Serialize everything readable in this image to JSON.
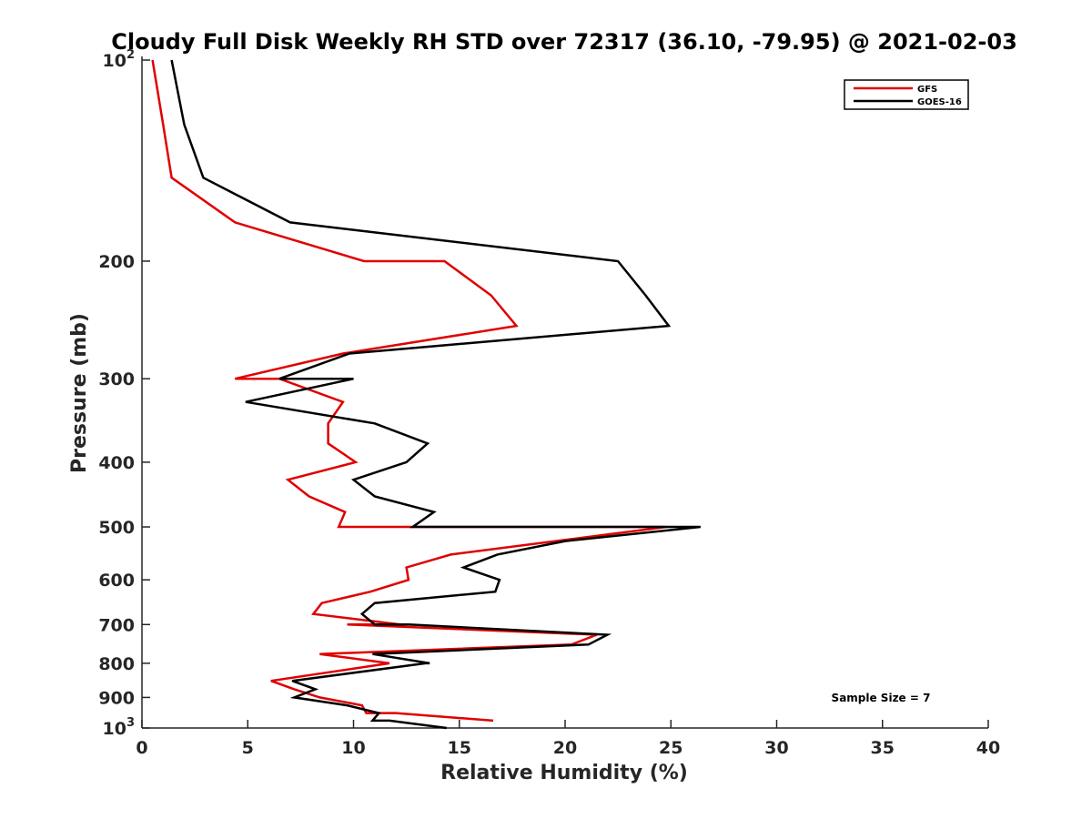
{
  "chart_data": {
    "type": "line",
    "title": "Cloudy Full Disk Weekly RH STD over 72317 (36.10, -79.95) @ 2021-02-03",
    "xlabel": "Relative Humidity (%)",
    "ylabel": "Pressure (mb)",
    "xlim": [
      0,
      40
    ],
    "ylim": [
      100,
      1000
    ],
    "y_scale": "log",
    "y_reversed": true,
    "x_ticks": [
      "0",
      "5",
      "10",
      "15",
      "20",
      "25",
      "30",
      "35",
      "40"
    ],
    "y_ticks": [
      {
        "value": 100,
        "base": "10",
        "exp": "2"
      },
      {
        "value": 200,
        "label": "200"
      },
      {
        "value": 300,
        "label": "300"
      },
      {
        "value": 400,
        "label": "400"
      },
      {
        "value": 500,
        "label": "500"
      },
      {
        "value": 600,
        "label": "600"
      },
      {
        "value": 700,
        "label": "700"
      },
      {
        "value": 800,
        "label": "800"
      },
      {
        "value": 900,
        "label": "900"
      },
      {
        "value": 1000,
        "base": "10",
        "exp": "3"
      }
    ],
    "grid": false,
    "legend_position": "top-right",
    "annotation": "Sample Size = 7",
    "series": [
      {
        "name": "GFS",
        "color": "#e00000",
        "points": [
          [
            0.5,
            100
          ],
          [
            1.0,
            125
          ],
          [
            1.4,
            150
          ],
          [
            4.4,
            175
          ],
          [
            10.5,
            200
          ],
          [
            14.3,
            200
          ],
          [
            16.5,
            225
          ],
          [
            17.7,
            250
          ],
          [
            9.5,
            275
          ],
          [
            4.4,
            300
          ],
          [
            6.5,
            300
          ],
          [
            9.5,
            325
          ],
          [
            8.8,
            350
          ],
          [
            8.8,
            375
          ],
          [
            10.1,
            400
          ],
          [
            6.9,
            425
          ],
          [
            7.9,
            450
          ],
          [
            9.6,
            475
          ],
          [
            9.3,
            500
          ],
          [
            24.8,
            500
          ],
          [
            14.6,
            550
          ],
          [
            12.5,
            575
          ],
          [
            12.6,
            600
          ],
          [
            10.8,
            625
          ],
          [
            8.5,
            650
          ],
          [
            8.1,
            675
          ],
          [
            12.2,
            700
          ],
          [
            9.7,
            700
          ],
          [
            21.5,
            725
          ],
          [
            20.3,
            750
          ],
          [
            8.4,
            775
          ],
          [
            11.7,
            800
          ],
          [
            6.1,
            850
          ],
          [
            7.2,
            875
          ],
          [
            8.4,
            900
          ],
          [
            10.4,
            925
          ],
          [
            10.6,
            950
          ],
          [
            12.0,
            950
          ],
          [
            16.6,
            975
          ]
        ]
      },
      {
        "name": "GOES-16",
        "color": "#000000",
        "points": [
          [
            1.4,
            100
          ],
          [
            2.0,
            125
          ],
          [
            2.9,
            150
          ],
          [
            7.0,
            175
          ],
          [
            22.5,
            200
          ],
          [
            23.8,
            225
          ],
          [
            24.9,
            250
          ],
          [
            9.8,
            275
          ],
          [
            6.5,
            300
          ],
          [
            10.0,
            300
          ],
          [
            4.9,
            325
          ],
          [
            11.0,
            350
          ],
          [
            13.5,
            375
          ],
          [
            12.5,
            400
          ],
          [
            10.0,
            425
          ],
          [
            11.0,
            450
          ],
          [
            13.8,
            475
          ],
          [
            12.8,
            500
          ],
          [
            13.0,
            500
          ],
          [
            26.4,
            500
          ],
          [
            20.0,
            525
          ],
          [
            16.8,
            550
          ],
          [
            15.2,
            575
          ],
          [
            16.9,
            600
          ],
          [
            16.7,
            625
          ],
          [
            11.0,
            650
          ],
          [
            10.4,
            675
          ],
          [
            11.0,
            700
          ],
          [
            12.6,
            700
          ],
          [
            22.0,
            725
          ],
          [
            21.1,
            750
          ],
          [
            10.9,
            775
          ],
          [
            13.6,
            800
          ],
          [
            13.4,
            800
          ],
          [
            7.1,
            850
          ],
          [
            8.2,
            875
          ],
          [
            7.2,
            900
          ],
          [
            9.7,
            925
          ],
          [
            11.2,
            950
          ],
          [
            10.9,
            975
          ],
          [
            11.7,
            975
          ],
          [
            14.4,
            1000
          ]
        ]
      }
    ]
  }
}
